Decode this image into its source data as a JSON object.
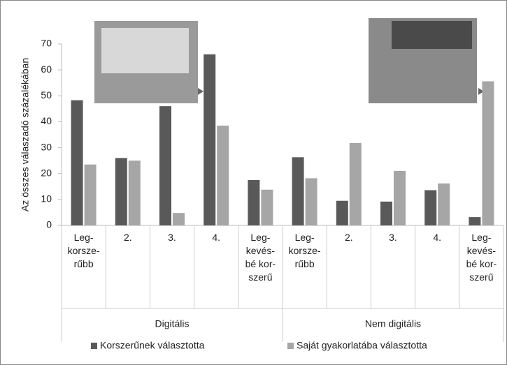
{
  "chart_data": {
    "type": "bar",
    "y_label": "Az összes válaszadó százalékában",
    "groups": [
      {
        "name": "Digitális",
        "categories": [
          "Leg-\nkorsze-\nrűbb",
          "2.",
          "3.",
          "4.",
          "Leg-\nkevés-\nbé kor-\nszerű"
        ]
      },
      {
        "name": "Nem digitális",
        "categories": [
          "Leg-\nkorsze-\nrűbb",
          "2.",
          "3.",
          "4.",
          "Leg-\nkevés-\nbé kor-\nszerű"
        ]
      }
    ],
    "series": [
      {
        "name": "Korszerűnek választotta",
        "color": "#595959",
        "values": [
          48.3,
          26,
          46,
          66,
          17.5,
          26.3,
          9.5,
          9.2,
          13.6,
          3.2
        ]
      },
      {
        "name": "Saját gyakorlatába választotta",
        "color": "#a6a6a6",
        "values": [
          23.5,
          25,
          4.8,
          38.5,
          13.8,
          18.2,
          31.8,
          21,
          16.2,
          55.6
        ]
      }
    ],
    "ylim": [
      0,
      70
    ],
    "yticks": [
      0,
      10,
      20,
      30,
      40,
      50,
      60,
      70
    ],
    "grid": false
  }
}
